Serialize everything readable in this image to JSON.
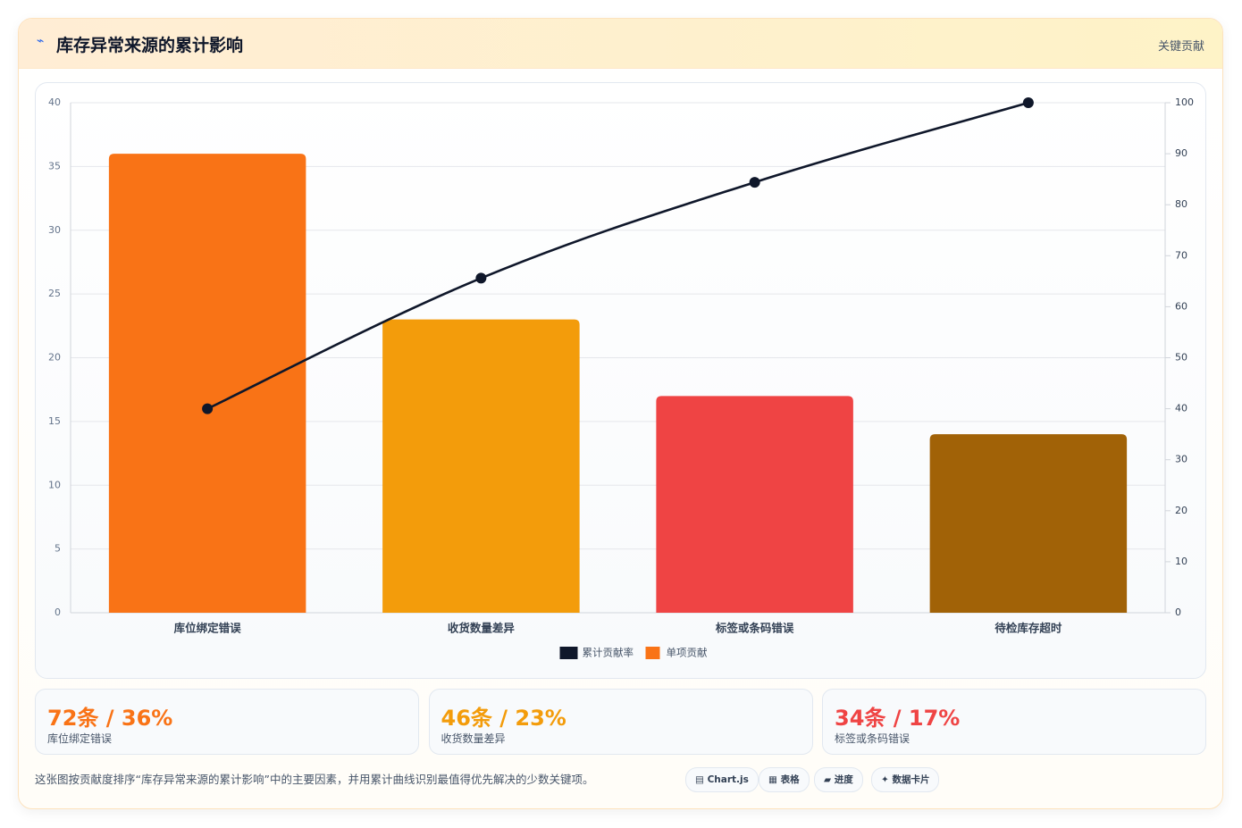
{
  "header": {
    "icon": "⌁",
    "title": "库存异常来源的累计影响",
    "badge": "关键贡献"
  },
  "chart_data": {
    "type": "pareto",
    "categories": [
      "库位绑定错误",
      "收货数量差异",
      "标签或条码错误",
      "待检库存超时"
    ],
    "series": [
      {
        "name": "累计贡献率",
        "type": "line",
        "axis": "y2",
        "color": "#0f172a",
        "values": [
          40,
          65.6,
          84.4,
          100
        ]
      },
      {
        "name": "单项贡献",
        "type": "bar",
        "color": "#f97316",
        "colors": [
          "#f97316",
          "#f39c0b",
          "#ef4444",
          "#a16207"
        ],
        "values": [
          36,
          23,
          17,
          14
        ]
      }
    ],
    "ylim": [
      0,
      40
    ],
    "yticks": [
      0,
      5,
      10,
      15,
      20,
      25,
      30,
      35,
      40
    ],
    "y2lim": [
      0,
      100
    ],
    "y2ticks": [
      0,
      10,
      20,
      30,
      40,
      50,
      60,
      70,
      80,
      90,
      100
    ],
    "grid": true,
    "legend": "bottom"
  },
  "kpis": [
    {
      "value": "72条 / 36%",
      "label": "库位绑定错误",
      "color": "#f97316"
    },
    {
      "value": "46条 / 23%",
      "label": "收货数量差异",
      "color": "#f39c0b"
    },
    {
      "value": "34条 / 17%",
      "label": "标签或条码错误",
      "color": "#ef4444"
    }
  ],
  "footer": {
    "note": "这张图按贡献度排序“库存异常来源的累计影响”中的主要因素，并用累计曲线识别最值得优先解决的少数关键项。",
    "chips": [
      "▤ Chart.js",
      "▦ 表格",
      "▰ 进度",
      "✦ 数据卡片"
    ]
  }
}
